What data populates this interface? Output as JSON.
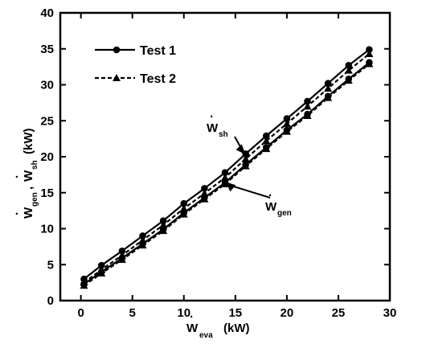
{
  "chart_data": {
    "type": "line",
    "xlim": [
      -2,
      30
    ],
    "ylim": [
      0,
      40
    ],
    "x_ticks": [
      0,
      5,
      10,
      15,
      20,
      25,
      30
    ],
    "y_ticks": [
      0,
      5,
      10,
      15,
      20,
      25,
      30,
      35,
      40
    ],
    "x_tick_labels": [
      "0",
      "5",
      "10",
      "15",
      "20",
      "25",
      "30"
    ],
    "y_tick_labels": [
      "0",
      "5",
      "10",
      "15",
      "20",
      "25",
      "30",
      "35",
      "40"
    ],
    "xlabel": {
      "base": "W",
      "sub": "eva",
      "unit": "(kW)",
      "dot": "·"
    },
    "ylabel": {
      "base1": "W",
      "sub1": "gen",
      "sep": ",",
      "base2": "W",
      "sub2": "sh",
      "unit": "(kW)",
      "dot": "·"
    },
    "grid": false,
    "legend_position": "top-left",
    "series": [
      {
        "name": "Test 1",
        "marker": "circle",
        "line_style": "solid",
        "x": [
          0.3,
          2,
          4,
          6,
          8,
          10,
          12,
          14,
          16,
          18,
          20,
          22,
          24,
          26,
          28
        ],
        "y": [
          3.0,
          4.9,
          6.9,
          9.0,
          11.1,
          13.5,
          15.6,
          17.8,
          20.4,
          22.9,
          25.3,
          27.7,
          30.2,
          32.7,
          34.9
        ]
      },
      {
        "name": "Test 2",
        "marker": "triangle",
        "line_style": "dashed",
        "x": [
          0.3,
          2,
          4,
          6,
          8,
          10,
          12,
          14,
          16,
          18,
          20,
          22,
          24,
          26,
          28
        ],
        "y": [
          2.5,
          4.3,
          6.3,
          8.4,
          10.5,
          12.8,
          14.9,
          17.1,
          19.7,
          22.2,
          24.6,
          27.0,
          29.5,
          32.0,
          34.3
        ]
      },
      {
        "name": "",
        "marker": "circle",
        "line_style": "solid",
        "x": [
          0.3,
          2,
          4,
          6,
          8,
          10,
          12,
          14,
          16,
          18,
          20,
          22,
          24,
          26,
          28
        ],
        "y": [
          2.3,
          4.0,
          5.9,
          7.9,
          9.9,
          12.2,
          14.3,
          16.4,
          18.9,
          21.3,
          23.7,
          25.9,
          28.4,
          30.8,
          33.1
        ]
      },
      {
        "name": "",
        "marker": "triangle",
        "line_style": "dashed",
        "x": [
          0.3,
          2,
          4,
          6,
          8,
          10,
          12,
          14,
          16,
          18,
          20,
          22,
          24,
          26,
          28
        ],
        "y": [
          2.1,
          3.8,
          5.7,
          7.7,
          9.7,
          12.0,
          14.1,
          16.2,
          18.7,
          21.1,
          23.5,
          25.7,
          28.2,
          30.6,
          32.9
        ]
      }
    ],
    "annotations": [
      {
        "base": "W",
        "sub": "sh",
        "dot": "·",
        "points_to": {
          "x": 16.0,
          "y": 20.3
        }
      },
      {
        "base": "W",
        "sub": "gen",
        "dot": "·",
        "points_to": {
          "x": 14.1,
          "y": 16.5
        }
      }
    ]
  }
}
